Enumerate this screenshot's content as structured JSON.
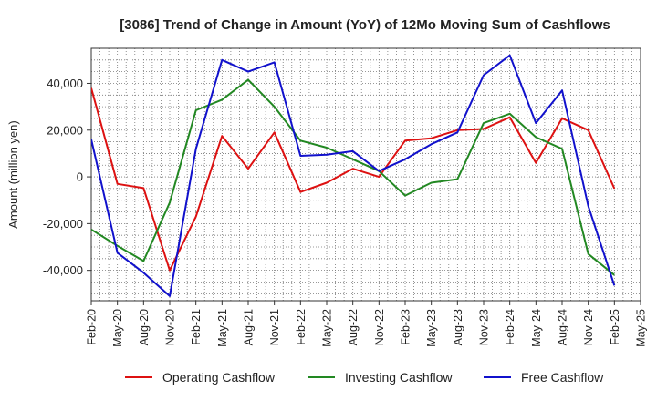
{
  "chart_data": {
    "type": "line",
    "title": "[3086]  Trend of Change in Amount (YoY) of 12Mo Moving Sum of Cashflows",
    "xlabel": "",
    "ylabel": "Amount (million yen)",
    "ylim": [
      -53000,
      55000
    ],
    "yticks": [
      40000,
      20000,
      0,
      -20000,
      -40000
    ],
    "ytick_labels": [
      "40,000",
      "20,000",
      "0",
      "-20,000",
      "-40,000"
    ],
    "categories": [
      "Feb-20",
      "May-20",
      "Aug-20",
      "Nov-20",
      "Feb-21",
      "May-21",
      "Aug-21",
      "Nov-21",
      "Feb-22",
      "May-22",
      "Aug-22",
      "Nov-22",
      "Feb-23",
      "May-23",
      "Aug-23",
      "Nov-23",
      "Feb-24",
      "May-24",
      "Aug-24",
      "Nov-24",
      "Feb-25",
      "May-25"
    ],
    "grid": true,
    "legend_position": "bottom",
    "series": [
      {
        "name": "Operating Cashflow",
        "color": "#dd1111",
        "values": [
          38000,
          -3000,
          -4800,
          -40000,
          -17000,
          17500,
          3500,
          19000,
          -6500,
          -2500,
          3500,
          0,
          15500,
          16500,
          20000,
          20500,
          25500,
          6000,
          25000,
          20000,
          -5000,
          null
        ]
      },
      {
        "name": "Investing Cashflow",
        "color": "#228822",
        "values": [
          -22500,
          -29500,
          -36000,
          -11000,
          28500,
          33000,
          41500,
          30000,
          15500,
          12500,
          7500,
          2500,
          -8000,
          -2500,
          -1000,
          23000,
          27000,
          17000,
          12000,
          -33000,
          -42000,
          null
        ]
      },
      {
        "name": "Free Cashflow",
        "color": "#1111cc",
        "values": [
          16000,
          -32500,
          -41000,
          -51000,
          12000,
          50000,
          45000,
          49000,
          9000,
          9500,
          11000,
          2500,
          7500,
          14000,
          19000,
          43500,
          52000,
          23000,
          37000,
          -12500,
          -46500,
          null
        ]
      }
    ]
  }
}
